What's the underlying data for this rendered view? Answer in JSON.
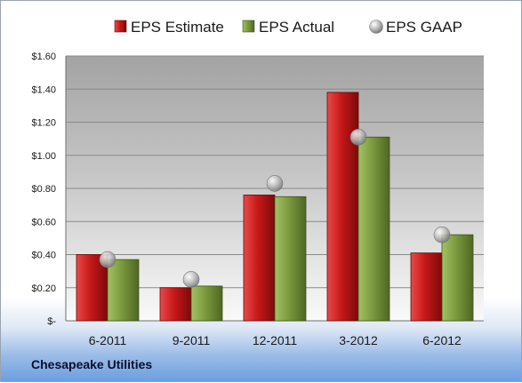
{
  "company": "Chesapeake Utilities",
  "colors": {
    "estimate": "#c41818",
    "actual": "#7a9a3c",
    "gaap": "#a8a8a8"
  },
  "chart_data": {
    "type": "bar",
    "title": "",
    "xlabel": "",
    "ylabel": "",
    "categories": [
      "6-2011",
      "9-2011",
      "12-2011",
      "3-2012",
      "6-2012"
    ],
    "series": [
      {
        "name": "EPS Estimate",
        "kind": "bar",
        "values": [
          0.4,
          0.2,
          0.76,
          1.38,
          0.41
        ]
      },
      {
        "name": "EPS Actual",
        "kind": "bar",
        "values": [
          0.37,
          0.21,
          0.75,
          1.11,
          0.52
        ]
      },
      {
        "name": "EPS GAAP",
        "kind": "marker",
        "values": [
          0.37,
          0.25,
          0.83,
          1.11,
          0.52
        ]
      }
    ],
    "ylim": [
      0,
      1.6
    ],
    "yticks": [
      0,
      0.2,
      0.4,
      0.6,
      0.8,
      1.0,
      1.2,
      1.4,
      1.6
    ],
    "ytick_labels": [
      "$-",
      "$0.20",
      "$0.40",
      "$0.60",
      "$0.80",
      "$1.00",
      "$1.20",
      "$1.40",
      "$1.60"
    ],
    "grid": true,
    "legend": "top"
  }
}
